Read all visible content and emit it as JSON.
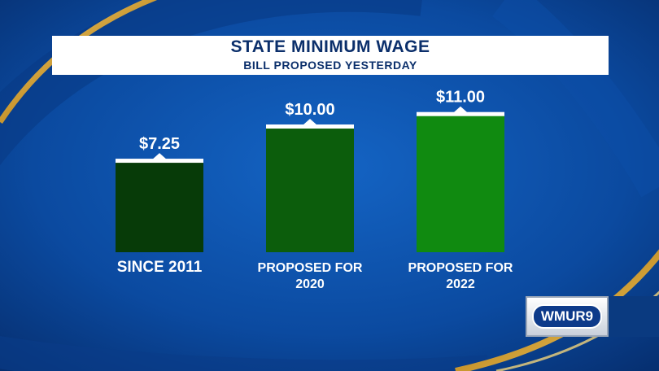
{
  "header": {
    "title": "STATE MINIMUM WAGE",
    "subtitle": "BILL PROPOSED YESTERDAY"
  },
  "logo": {
    "text": "WMUR9"
  },
  "colors": {
    "background": "#0a3f8f",
    "accent_gold": "#e6c15a",
    "bar_colors": [
      "#073b08",
      "#0c5d0c",
      "#108a10"
    ]
  },
  "chart_data": {
    "type": "bar",
    "title": "STATE MINIMUM WAGE",
    "subtitle": "BILL PROPOSED YESTERDAY",
    "categories": [
      [
        "SINCE 2011"
      ],
      [
        "PROPOSED FOR",
        "2020"
      ],
      [
        "PROPOSED FOR",
        "2022"
      ]
    ],
    "values": [
      7.25,
      10.0,
      11.0
    ],
    "value_labels": [
      "$7.25",
      "$10.00",
      "$11.00"
    ],
    "xlabel": "",
    "ylabel": "",
    "grid": false,
    "legend": "none"
  }
}
